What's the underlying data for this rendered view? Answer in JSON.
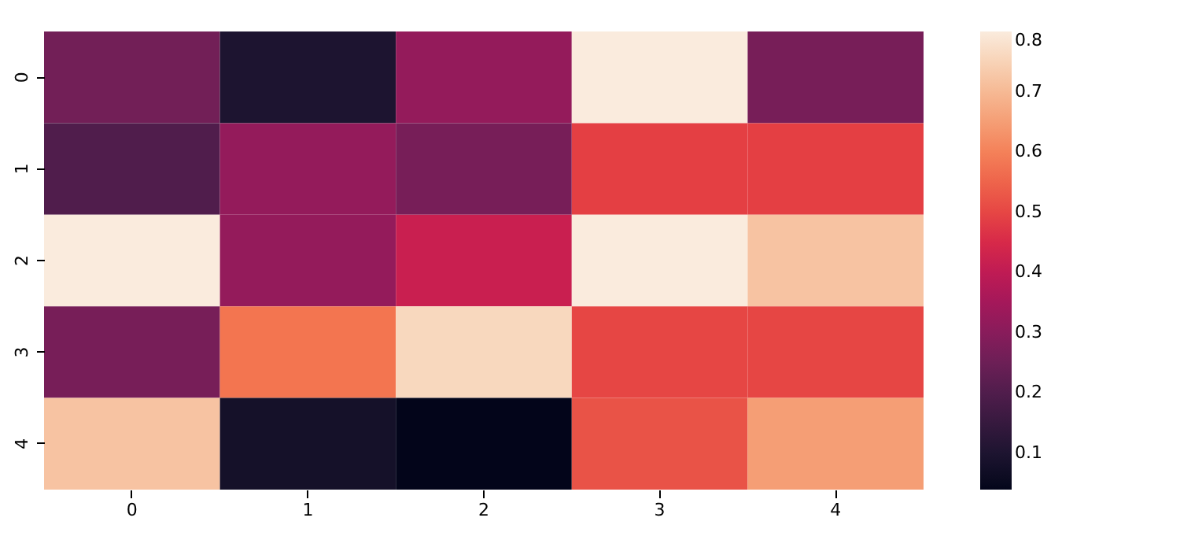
{
  "chart_data": {
    "type": "heatmap",
    "categories": [
      "0",
      "1",
      "2",
      "3",
      "4"
    ],
    "y_categories": [
      "0",
      "1",
      "2",
      "3",
      "4"
    ],
    "cells": [
      [
        0.26,
        0.1,
        0.32,
        0.8,
        0.27
      ],
      [
        0.2,
        0.32,
        0.27,
        0.49,
        0.49
      ],
      [
        0.8,
        0.32,
        0.42,
        0.8,
        0.72
      ],
      [
        0.27,
        0.58,
        0.76,
        0.5,
        0.5
      ],
      [
        0.72,
        0.08,
        0.04,
        0.52,
        0.65
      ]
    ],
    "clim": [
      0.04,
      0.8
    ],
    "cticks": [
      0.1,
      0.2,
      0.3,
      0.4,
      0.5,
      0.6,
      0.7,
      0.8
    ]
  }
}
